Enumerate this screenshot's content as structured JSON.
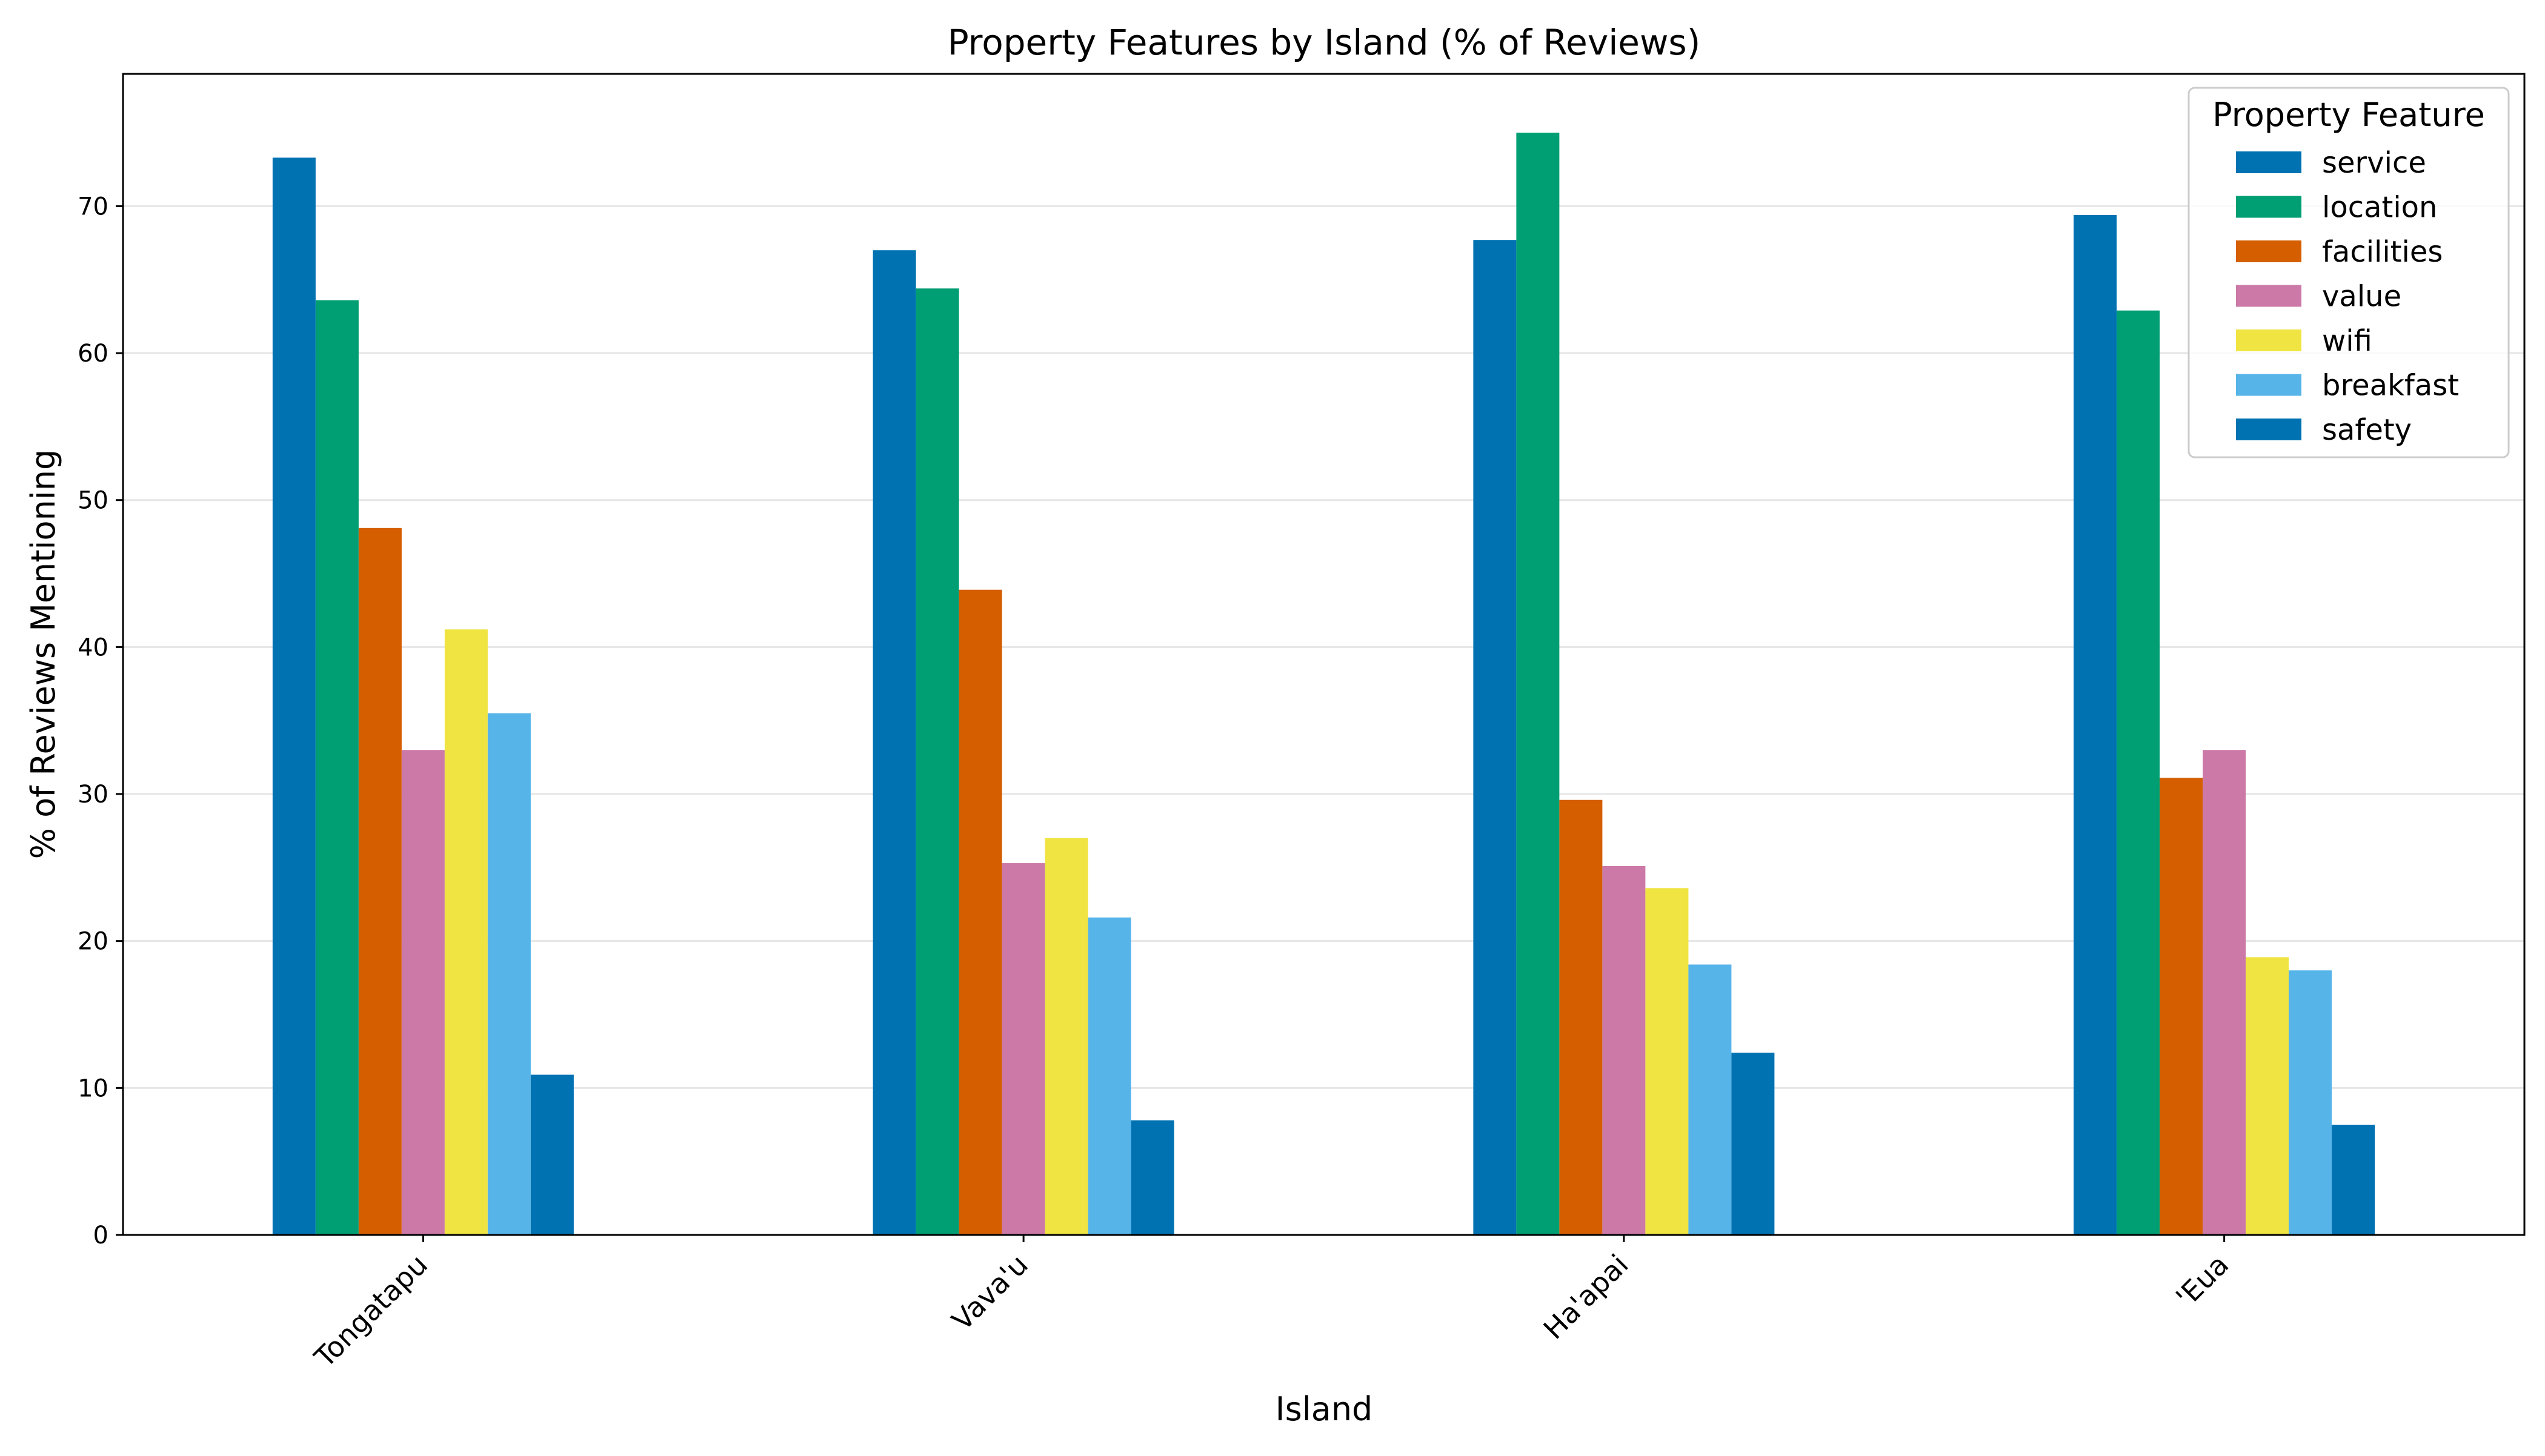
{
  "chart_data": {
    "type": "bar",
    "title": "Property Features by Island (% of Reviews)",
    "xlabel": "Island",
    "ylabel": "% of Reviews Mentioning",
    "categories": [
      "Tongatapu",
      "Vava'u",
      "Ha'apai",
      "'Eua"
    ],
    "ylim": [
      0,
      79
    ],
    "yticks": [
      0,
      10,
      20,
      30,
      40,
      50,
      60,
      70
    ],
    "grid": "horizontal",
    "legend": {
      "title": "Property Feature",
      "placement": "top-right"
    },
    "series": [
      {
        "name": "service",
        "color": "#0072b2",
        "values": [
          73.3,
          67.0,
          67.7,
          69.4
        ]
      },
      {
        "name": "location",
        "color": "#009e73",
        "values": [
          63.6,
          64.4,
          75.0,
          62.9
        ]
      },
      {
        "name": "facilities",
        "color": "#d55e00",
        "values": [
          48.1,
          43.9,
          29.6,
          31.1
        ]
      },
      {
        "name": "value",
        "color": "#cc79a7",
        "values": [
          33.0,
          25.3,
          25.1,
          33.0
        ]
      },
      {
        "name": "wifi",
        "color": "#f0e442",
        "values": [
          41.2,
          27.0,
          23.6,
          18.9
        ]
      },
      {
        "name": "breakfast",
        "color": "#56b4e9",
        "values": [
          35.5,
          21.6,
          18.4,
          18.0
        ]
      },
      {
        "name": "safety",
        "color": "#0072b2",
        "values": [
          10.9,
          7.8,
          12.4,
          7.5
        ]
      }
    ]
  }
}
